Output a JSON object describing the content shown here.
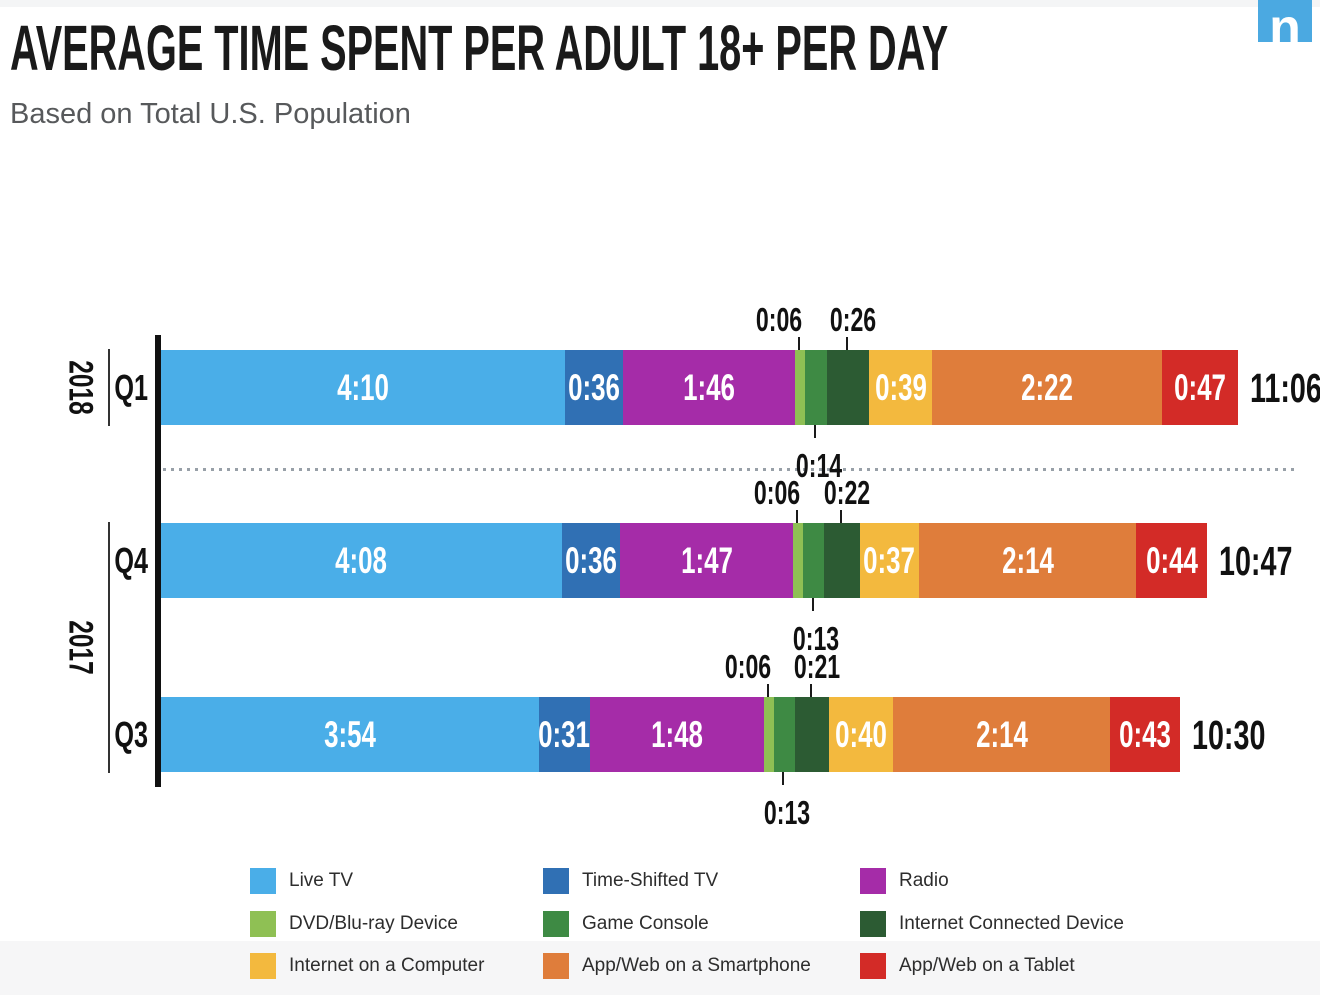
{
  "page": {
    "title": "AVERAGE TIME SPENT PER ADULT 18+ PER DAY",
    "subtitle": "Based on Total U.S. Population",
    "logo_letter": "n",
    "logo_color": "#4BA9E1"
  },
  "chart_data": {
    "type": "bar",
    "orientation": "horizontal-stacked",
    "title": "AVERAGE TIME SPENT PER ADULT 18+ PER DAY",
    "subtitle": "Based on Total U.S. Population",
    "value_format": "h:mm per day",
    "axis_max_minutes": 666,
    "grid": false,
    "legend_position": "bottom",
    "series": [
      {
        "name": "Live TV",
        "color": "#4AAEE8",
        "label_pos": "inside"
      },
      {
        "name": "Time-Shifted TV",
        "color": "#3070B4",
        "label_pos": "inside"
      },
      {
        "name": "Radio",
        "color": "#A52CA8",
        "label_pos": "inside"
      },
      {
        "name": "DVD/Blu-ray Device",
        "color": "#8FC054",
        "label_pos": "above"
      },
      {
        "name": "Game Console",
        "color": "#3E8A44",
        "label_pos": "below"
      },
      {
        "name": "Internet Connected Device",
        "color": "#2C5B33",
        "label_pos": "above"
      },
      {
        "name": "Internet on a Computer",
        "color": "#F3B93E",
        "label_pos": "inside"
      },
      {
        "name": "App/Web on a Smartphone",
        "color": "#DF7D3B",
        "label_pos": "inside"
      },
      {
        "name": "App/Web on a Tablet",
        "color": "#D32B27",
        "label_pos": "inside"
      }
    ],
    "rows": [
      {
        "year": "2018",
        "quarter": "Q1",
        "total_label": "11:06",
        "total_minutes": 666,
        "values": [
          "4:10",
          "0:36",
          "1:46",
          "0:06",
          "0:14",
          "0:26",
          "0:39",
          "2:22",
          "0:47"
        ],
        "minutes": [
          250,
          36,
          106,
          6,
          14,
          26,
          39,
          142,
          47
        ]
      },
      {
        "year": "2017",
        "quarter": "Q4",
        "total_label": "10:47",
        "total_minutes": 647,
        "values": [
          "4:08",
          "0:36",
          "1:47",
          "0:06",
          "0:13",
          "0:22",
          "0:37",
          "2:14",
          "0:44"
        ],
        "minutes": [
          248,
          36,
          107,
          6,
          13,
          22,
          37,
          134,
          44
        ]
      },
      {
        "year": "2017",
        "quarter": "Q3",
        "total_label": "10:30",
        "total_minutes": 630,
        "values": [
          "3:54",
          "0:31",
          "1:48",
          "0:06",
          "0:13",
          "0:21",
          "0:40",
          "2:14",
          "0:43"
        ],
        "minutes": [
          234,
          31,
          108,
          6,
          13,
          21,
          40,
          134,
          43
        ]
      }
    ],
    "year_groups": [
      {
        "label": "2018",
        "quarters": [
          "Q1"
        ]
      },
      {
        "label": "2017",
        "quarters": [
          "Q4",
          "Q3"
        ]
      }
    ]
  }
}
